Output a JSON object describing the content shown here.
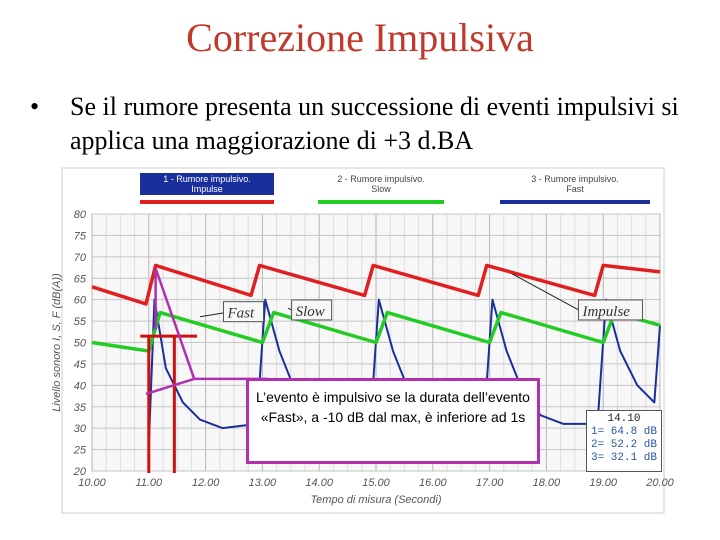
{
  "slide": {
    "title": "Correzione Impulsiva",
    "bullet_symbol": "•",
    "bullet_text": "Se il rumore presenta un successione di eventi impulsivi si applica una maggiorazione di +3 d.BA"
  },
  "callout": {
    "text": "L’evento è impulsivo se la durata dell’evento «Fast», a -10 dB dal max, è inferiore ad 1s"
  },
  "readout": {
    "time": "14.10",
    "lines": [
      "1=  64.8 dB",
      "2=  52.2 dB",
      "3=  32.1 dB"
    ]
  },
  "annotations": [
    "Fast",
    "Slow",
    "Impulse"
  ],
  "chart_data": {
    "type": "line",
    "xlabel": "Tempo di misura (Secondi)",
    "ylabel": "Livello sonoro I, S, F (dB(A))",
    "xlim": [
      10,
      20
    ],
    "ylim": [
      20,
      80
    ],
    "x_ticks": [
      "10.00",
      "11.00",
      "12.00",
      "13.00",
      "14.00",
      "15.00",
      "16.00",
      "17.00",
      "18.00",
      "19.00",
      "20.00"
    ],
    "y_ticks": [
      "20",
      "25",
      "30",
      "35",
      "40",
      "45",
      "50",
      "55",
      "60",
      "65",
      "70",
      "75",
      "80"
    ],
    "grid": true,
    "legend_position": "top",
    "colors": {
      "impulse": "#e02020",
      "slow": "#22cc22",
      "fast": "#1a2f9c",
      "callout_border": "#b030b0",
      "title": "#c0392b"
    },
    "series": [
      {
        "name": "1 - Rumore impulsivo. Impulse",
        "x": [
          10.0,
          10.95,
          11.12,
          12.8,
          12.95,
          14.8,
          14.95,
          16.8,
          16.95,
          18.85,
          19.0,
          20.0
        ],
        "y": [
          63.0,
          59.0,
          68.0,
          61.0,
          68.0,
          61.0,
          68.0,
          61.0,
          68.0,
          61.0,
          68.0,
          66.5
        ]
      },
      {
        "name": "2 - Rumore impulsivo. Slow",
        "x": [
          10.0,
          11.0,
          11.2,
          13.0,
          13.2,
          15.0,
          15.2,
          17.0,
          17.2,
          19.0,
          19.2,
          20.0
        ],
        "y": [
          50.0,
          48.0,
          57.0,
          50.0,
          57.0,
          50.0,
          57.0,
          50.0,
          57.0,
          50.0,
          57.0,
          54.0
        ]
      },
      {
        "name": "3 - Rumore impulsivo. Fast",
        "x": [
          11.0,
          11.1,
          11.3,
          11.6,
          11.9,
          12.3,
          12.9,
          13.05,
          13.3,
          13.6,
          13.9,
          14.3,
          14.9,
          15.05,
          15.3,
          15.6,
          15.9,
          16.3,
          16.9,
          17.05,
          17.3,
          17.6,
          17.9,
          18.3,
          18.9,
          19.05,
          19.3,
          19.6,
          19.9,
          20.0
        ],
        "y": [
          26.0,
          60.0,
          44.0,
          36.0,
          32.0,
          30.0,
          31.0,
          60.0,
          48.0,
          38.0,
          33.0,
          31.0,
          31.0,
          60.0,
          48.0,
          38.0,
          33.0,
          31.0,
          31.0,
          60.0,
          48.0,
          38.0,
          33.0,
          31.0,
          31.0,
          60.0,
          48.0,
          40.0,
          36.0,
          54.0
        ]
      }
    ]
  }
}
